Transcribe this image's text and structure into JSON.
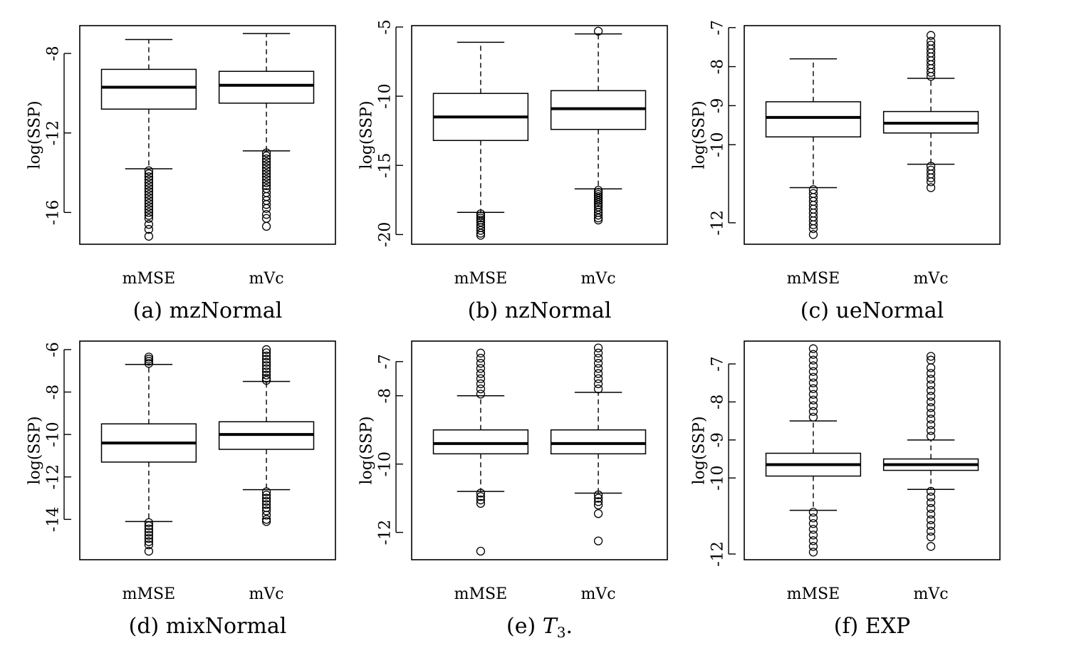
{
  "chart_data": [
    {
      "type": "boxplot",
      "caption_prefix": "(a)",
      "caption_name": "mzNormal",
      "caption_suffix": "",
      "caption_italic": false,
      "ylabel": "log(SSP)",
      "categories": [
        "mMSE",
        "mVc"
      ],
      "ylim": [
        -17.6,
        -6.6
      ],
      "yticks": [
        -8,
        -12,
        -16
      ],
      "ytick_labels": [
        "-8",
        "-12",
        "-16"
      ],
      "grid": false,
      "boxes": [
        {
          "category": "mMSE",
          "whisker_low": -13.8,
          "q1": -10.8,
          "median": -9.7,
          "q3": -8.8,
          "whisker_high": -7.3,
          "outliers": [
            -13.9,
            -14.05,
            -14.2,
            -14.35,
            -14.5,
            -14.65,
            -14.8,
            -14.95,
            -15.1,
            -15.25,
            -15.4,
            -15.55,
            -15.7,
            -15.85,
            -16.0,
            -16.15,
            -16.3,
            -16.6,
            -16.85,
            -17.2
          ]
        },
        {
          "category": "mVc",
          "whisker_low": -12.9,
          "q1": -10.5,
          "median": -9.6,
          "q3": -8.9,
          "whisker_high": -7.0,
          "outliers": [
            -13.0,
            -13.15,
            -13.3,
            -13.45,
            -13.6,
            -13.75,
            -13.9,
            -14.05,
            -14.2,
            -14.35,
            -14.5,
            -14.65,
            -14.8,
            -15.0,
            -15.2,
            -15.4,
            -15.6,
            -15.8,
            -16.1,
            -16.3,
            -16.7
          ]
        }
      ]
    },
    {
      "type": "boxplot",
      "caption_prefix": "(b)",
      "caption_name": "nzNormal",
      "caption_suffix": "",
      "caption_italic": false,
      "ylabel": "log(SSP)",
      "categories": [
        "mMSE",
        "mVc"
      ],
      "ylim": [
        -20.7,
        -4.9
      ],
      "yticks": [
        -5,
        -10,
        -15,
        -20
      ],
      "ytick_labels": [
        "-5",
        "-10",
        "-15",
        "-20"
      ],
      "grid": false,
      "boxes": [
        {
          "category": "mMSE",
          "whisker_low": -18.4,
          "q1": -13.2,
          "median": -11.5,
          "q3": -9.8,
          "whisker_high": -6.1,
          "outliers": [
            -18.5,
            -18.65,
            -18.8,
            -18.95,
            -19.1,
            -19.3,
            -19.5,
            -19.7,
            -19.9,
            -20.05
          ]
        },
        {
          "category": "mVc",
          "whisker_low": -16.7,
          "q1": -12.4,
          "median": -10.9,
          "q3": -9.6,
          "whisker_high": -5.5,
          "outliers": [
            -16.8,
            -16.95,
            -17.1,
            -17.25,
            -17.4,
            -17.55,
            -17.7,
            -17.85,
            -18.0,
            -18.2,
            -18.4,
            -18.6,
            -18.8,
            -18.95,
            -5.3
          ]
        }
      ]
    },
    {
      "type": "boxplot",
      "caption_prefix": "(c)",
      "caption_name": "ueNormal",
      "caption_suffix": "",
      "caption_italic": false,
      "ylabel": "log(SSP)",
      "categories": [
        "mMSE",
        "mVc"
      ],
      "ylim": [
        -12.55,
        -6.95
      ],
      "yticks": [
        -7,
        -8,
        -9,
        -10,
        -12
      ],
      "ytick_labels": [
        "-7",
        "-8",
        "-9",
        "-10",
        "-12"
      ],
      "grid": false,
      "boxes": [
        {
          "category": "mMSE",
          "whisker_low": -11.1,
          "q1": -9.8,
          "median": -9.3,
          "q3": -8.9,
          "whisker_high": -7.8,
          "outliers": [
            -11.15,
            -11.25,
            -11.35,
            -11.45,
            -11.55,
            -11.65,
            -11.75,
            -11.85,
            -11.95,
            -12.05,
            -12.15,
            -12.3
          ]
        },
        {
          "category": "mVc",
          "whisker_low": -10.5,
          "q1": -9.7,
          "median": -9.45,
          "q3": -9.15,
          "whisker_high": -8.3,
          "outliers": [
            -8.25,
            -8.15,
            -8.05,
            -7.95,
            -7.85,
            -7.75,
            -7.65,
            -7.55,
            -7.45,
            -7.35,
            -7.2,
            -10.55,
            -10.65,
            -10.75,
            -10.85,
            -10.95,
            -11.1
          ]
        }
      ]
    },
    {
      "type": "boxplot",
      "caption_prefix": "(d)",
      "caption_name": "mixNormal",
      "caption_suffix": "",
      "caption_italic": false,
      "ylabel": "log(SSP)",
      "categories": [
        "mMSE",
        "mVc"
      ],
      "ylim": [
        -15.9,
        -5.6
      ],
      "yticks": [
        -6,
        -8,
        -10,
        -12,
        -14
      ],
      "ytick_labels": [
        "-6",
        "-8",
        "-10",
        "-12",
        "-14"
      ],
      "grid": false,
      "boxes": [
        {
          "category": "mMSE",
          "whisker_low": -14.1,
          "q1": -11.3,
          "median": -10.4,
          "q3": -9.5,
          "whisker_high": -6.7,
          "outliers": [
            -6.35,
            -6.45,
            -6.55,
            -6.65,
            -14.15,
            -14.3,
            -14.45,
            -14.6,
            -14.75,
            -14.9,
            -15.05,
            -15.2,
            -15.5
          ]
        },
        {
          "category": "mVc",
          "whisker_low": -12.6,
          "q1": -10.7,
          "median": -10.0,
          "q3": -9.4,
          "whisker_high": -7.5,
          "outliers": [
            -6.0,
            -6.15,
            -6.3,
            -6.45,
            -6.6,
            -6.75,
            -6.9,
            -7.05,
            -7.2,
            -7.35,
            -7.45,
            -12.7,
            -12.85,
            -13.0,
            -13.15,
            -13.3,
            -13.45,
            -13.6,
            -13.8,
            -14.0,
            -14.1
          ]
        }
      ]
    },
    {
      "type": "boxplot",
      "caption_prefix": "(e)",
      "caption_name": "T",
      "caption_sub": "3",
      "caption_suffix": ".",
      "caption_italic": true,
      "ylabel": "log(SSP)",
      "categories": [
        "mMSE",
        "mVc"
      ],
      "ylim": [
        -12.8,
        -6.4
      ],
      "yticks": [
        -7,
        -8,
        -10,
        -12
      ],
      "ytick_labels": [
        "-7",
        "-8",
        "-10",
        "-12"
      ],
      "grid": false,
      "boxes": [
        {
          "category": "mMSE",
          "whisker_low": -10.8,
          "q1": -9.7,
          "median": -9.4,
          "q3": -9.0,
          "whisker_high": -8.0,
          "outliers": [
            -6.75,
            -6.9,
            -7.05,
            -7.2,
            -7.35,
            -7.5,
            -7.65,
            -7.8,
            -7.95,
            -10.85,
            -10.95,
            -11.05,
            -11.15,
            -12.55
          ]
        },
        {
          "category": "mVc",
          "whisker_low": -10.85,
          "q1": -9.7,
          "median": -9.4,
          "q3": -9.0,
          "whisker_high": -7.9,
          "outliers": [
            -6.6,
            -6.75,
            -6.9,
            -7.05,
            -7.2,
            -7.35,
            -7.5,
            -7.65,
            -7.8,
            -10.9,
            -11.0,
            -11.1,
            -11.2,
            -11.45,
            -12.25
          ]
        }
      ]
    },
    {
      "type": "boxplot",
      "caption_prefix": "(f)",
      "caption_name": "EXP",
      "caption_suffix": "",
      "caption_italic": false,
      "ylabel": "log(SSP)",
      "categories": [
        "mMSE",
        "mVc"
      ],
      "ylim": [
        -12.15,
        -6.4
      ],
      "yticks": [
        -7,
        -8,
        -9,
        -10,
        -12
      ],
      "ytick_labels": [
        "-7",
        "-8",
        "-9",
        "-10",
        "-12"
      ],
      "grid": false,
      "boxes": [
        {
          "category": "mMSE",
          "whisker_low": -10.85,
          "q1": -9.95,
          "median": -9.65,
          "q3": -9.35,
          "whisker_high": -8.5,
          "outliers": [
            -6.6,
            -6.75,
            -6.9,
            -7.05,
            -7.2,
            -7.35,
            -7.5,
            -7.65,
            -7.8,
            -7.95,
            -8.1,
            -8.25,
            -8.4,
            -10.9,
            -11.05,
            -11.2,
            -11.35,
            -11.5,
            -11.65,
            -11.8,
            -11.95
          ]
        },
        {
          "category": "mVc",
          "whisker_low": -10.3,
          "q1": -9.8,
          "median": -9.65,
          "q3": -9.5,
          "whisker_high": -9.0,
          "outliers": [
            -6.8,
            -6.9,
            -7.1,
            -7.25,
            -7.4,
            -7.55,
            -7.7,
            -7.85,
            -8.0,
            -8.15,
            -8.3,
            -8.45,
            -8.6,
            -8.75,
            -8.9,
            -10.35,
            -10.5,
            -10.65,
            -10.8,
            -10.95,
            -11.1,
            -11.25,
            -11.4,
            -11.55,
            -11.8
          ]
        }
      ]
    }
  ]
}
